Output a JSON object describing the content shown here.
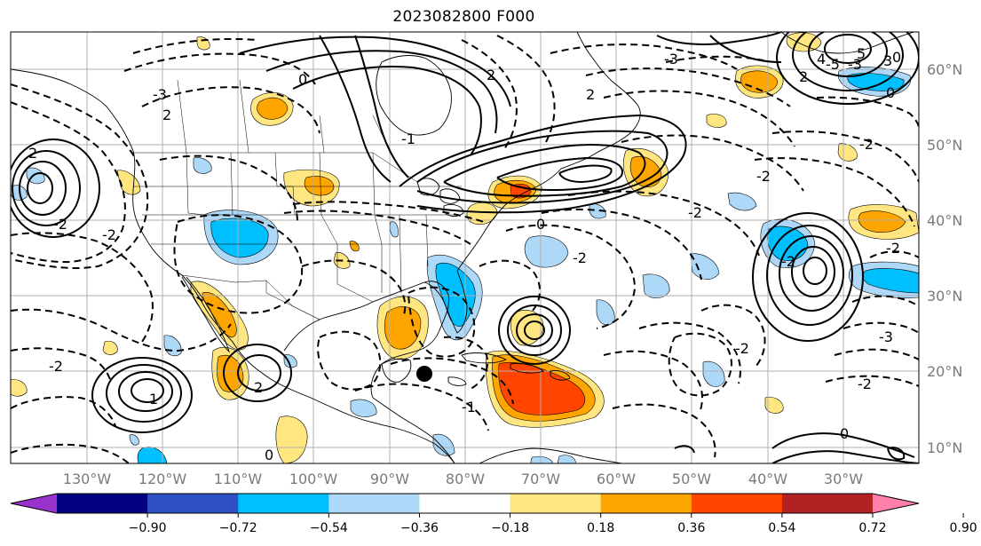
{
  "title": "2023082800 F000",
  "map": {
    "lon_labels": [
      "130°W",
      "120°W",
      "110°W",
      "100°W",
      "90°W",
      "80°W",
      "70°W",
      "60°W",
      "50°W",
      "40°W",
      "30°W"
    ],
    "lat_labels": [
      "60°N",
      "50°N",
      "40°N",
      "30°N",
      "20°N",
      "10°N"
    ],
    "contour_labels": [
      "-3",
      "2",
      "0",
      "2",
      "-3",
      "2",
      "-3",
      "0",
      "2",
      "-5",
      "4",
      "5",
      "3",
      "0",
      "-1",
      "-2",
      "-2",
      "-2",
      "2",
      "-2",
      "-2",
      "0",
      "-2",
      "-2",
      "-2",
      "-2",
      "1",
      "-1",
      "2",
      "-2",
      "0",
      "0",
      "-2",
      "-3"
    ]
  },
  "colorbar": {
    "colors": [
      "#9932cc",
      "#000080",
      "#3050c8",
      "#00bfff",
      "#add8f7",
      "#ffffff",
      "#ffe680",
      "#ffa500",
      "#ff4500",
      "#b22222",
      "#ff80aa"
    ],
    "ticks": [
      "−0.90",
      "−0.72",
      "−0.54",
      "−0.36",
      "−0.18",
      "0.18",
      "0.36",
      "0.54",
      "0.72",
      "0.90"
    ]
  }
}
